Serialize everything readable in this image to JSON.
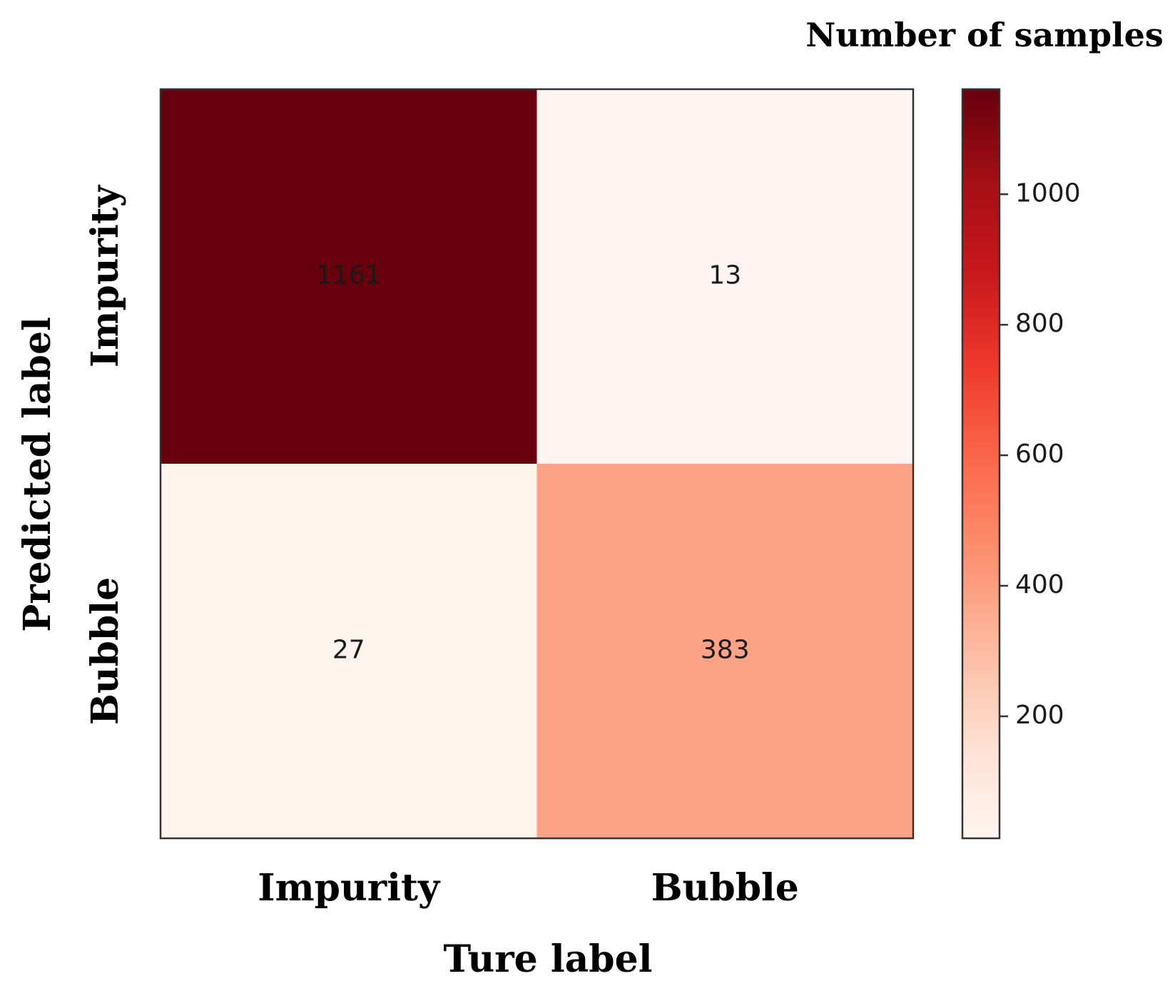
{
  "chart_data": {
    "type": "heatmap",
    "x_categories": [
      "Impurity",
      "Bubble"
    ],
    "y_categories": [
      "Impurity",
      "Bubble"
    ],
    "matrix": [
      [
        1161,
        13
      ],
      [
        27,
        383
      ]
    ],
    "cell_labels": [
      [
        "1161",
        "13"
      ],
      [
        "27",
        "383"
      ]
    ],
    "xlabel": "Ture label",
    "ylabel": "Predicted label",
    "colorbar": {
      "label": "Number of samples",
      "min": 13,
      "max": 1161,
      "ticks": [
        200,
        400,
        600,
        800,
        1000
      ],
      "tick_labels": [
        "200",
        "400",
        "600",
        "800",
        "1000"
      ],
      "colormap": "Reds"
    },
    "colors": {
      "low": "#fff5f0",
      "high": "#67000d"
    }
  }
}
